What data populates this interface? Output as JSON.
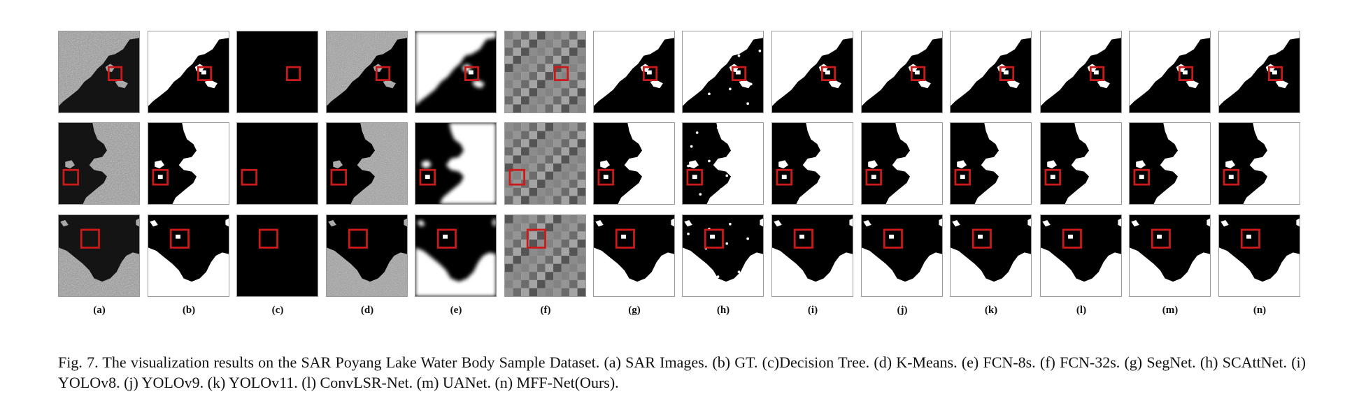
{
  "figure": {
    "columns": [
      {
        "id": "a",
        "label": "(a)",
        "style": "sar"
      },
      {
        "id": "b",
        "label": "(b)",
        "style": "mask"
      },
      {
        "id": "c",
        "label": "(c)",
        "style": "blank"
      },
      {
        "id": "d",
        "label": "(d)",
        "style": "kmeans"
      },
      {
        "id": "e",
        "label": "(e)",
        "style": "blur"
      },
      {
        "id": "f",
        "label": "(f)",
        "style": "coarse"
      },
      {
        "id": "g",
        "label": "(g)",
        "style": "mask"
      },
      {
        "id": "h",
        "label": "(h)",
        "style": "noisy"
      },
      {
        "id": "i",
        "label": "(i)",
        "style": "mask"
      },
      {
        "id": "j",
        "label": "(j)",
        "style": "mask"
      },
      {
        "id": "k",
        "label": "(k)",
        "style": "mask"
      },
      {
        "id": "l",
        "label": "(l)",
        "style": "mask"
      },
      {
        "id": "m",
        "label": "(m)",
        "style": "mask"
      },
      {
        "id": "n",
        "label": "(n)",
        "style": "mask"
      }
    ],
    "rows": 3,
    "highlight_color": "#cc1a1a"
  },
  "caption": {
    "text": "Fig. 7.  The visualization results on the SAR Poyang Lake Water Body Sample Dataset. (a) SAR Images. (b) GT. (c)Decision Tree. (d) K-Means. (e) FCN-8s. (f) FCN-32s. (g) SegNet. (h) SCAttNet. (i) YOLOv8. (j) YOLOv9. (k) YOLOv11. (l) ConvLSR-Net. (m) UANet. (n) MFF-Net(Ours)."
  }
}
